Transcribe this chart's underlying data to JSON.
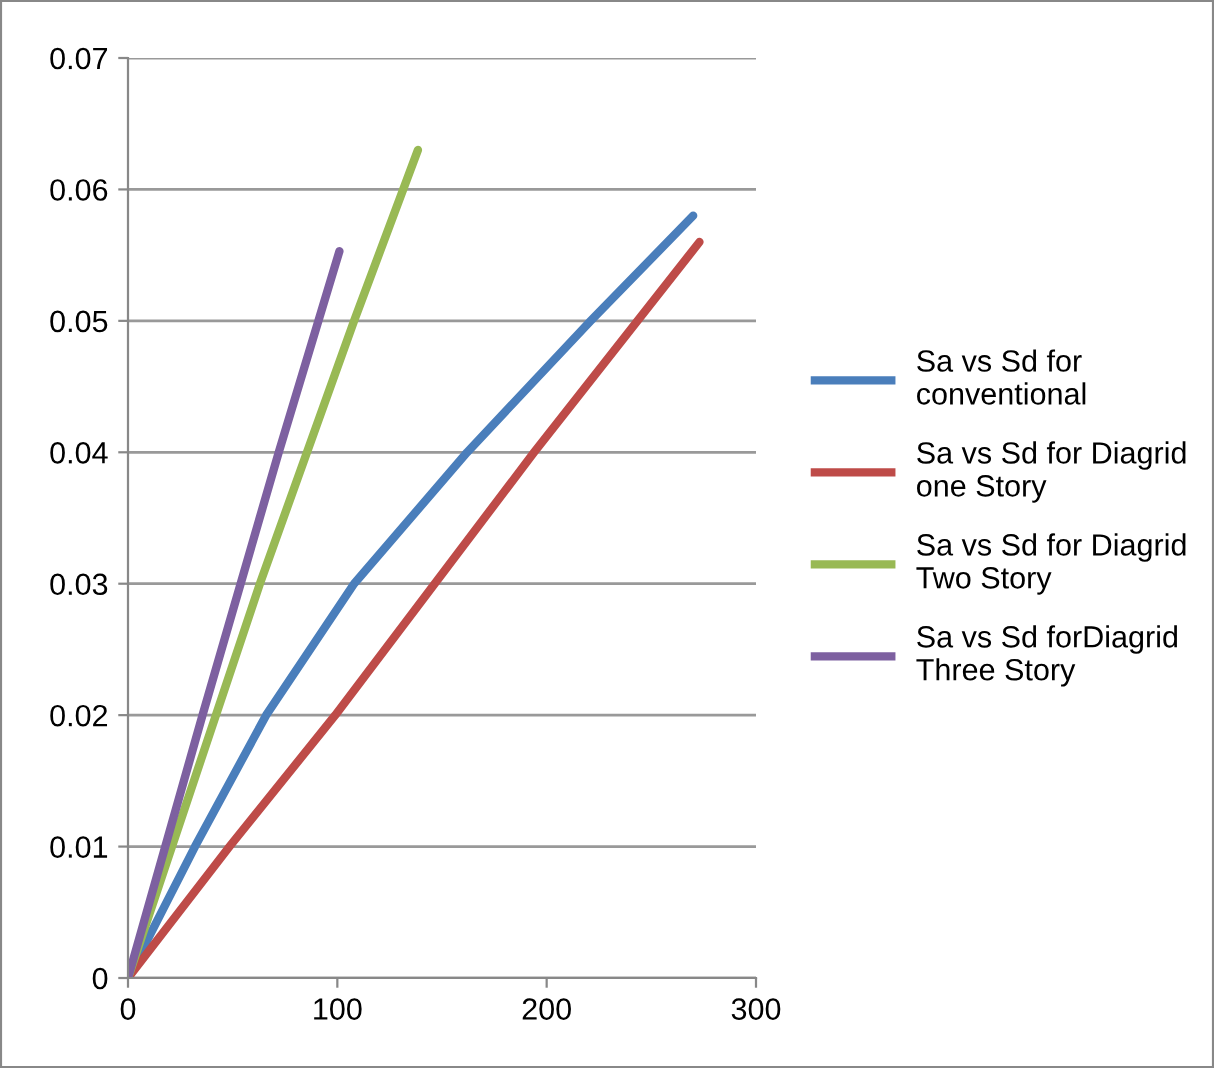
{
  "chart_data": {
    "type": "line",
    "xlim": [
      0,
      300
    ],
    "xticks": [
      0,
      100,
      200,
      300
    ],
    "ylim": [
      0,
      0.07
    ],
    "yticks": [
      {
        "value": 0,
        "label": "0"
      },
      0.01,
      0.02,
      0.03,
      0.04,
      0.05,
      0.06,
      0.07
    ],
    "grid": "y",
    "legend": "right",
    "line_style": "solid",
    "series": [
      {
        "name": "Sa vs Sd for conventional",
        "color": "#4a7ebb",
        "x": [
          0,
          32,
          66,
          108,
          162,
          221,
          270
        ],
        "values": [
          0,
          0.01,
          0.02,
          0.03,
          0.04,
          0.05,
          0.058
        ]
      },
      {
        "name": "Sa vs Sd for Diagrid one Story",
        "color": "#be4b48",
        "x": [
          0,
          48.5,
          99,
          194,
          273
        ],
        "values": [
          0,
          0.01,
          0.02,
          0.04,
          0.056
        ]
      },
      {
        "name": "Sa vs Sd for Diagrid Two Story",
        "color": "#98b954",
        "x": [
          0,
          63,
          108,
          138.5
        ],
        "values": [
          0,
          0.03,
          0.05,
          0.063
        ]
      },
      {
        "name": "Sa vs Sd forDiagrid Three Story",
        "color": "#7d60a0",
        "x": [
          0,
          35.6,
          72,
          101
        ],
        "values": [
          0,
          0.02,
          0.04,
          0.0553
        ]
      }
    ]
  }
}
